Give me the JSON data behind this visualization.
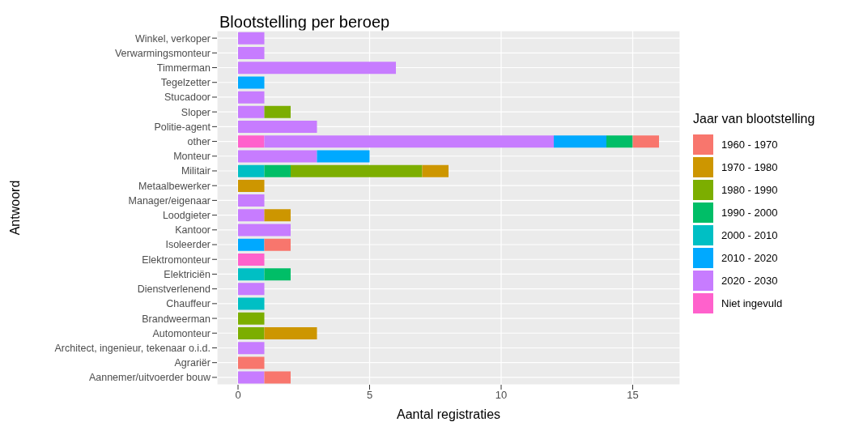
{
  "chart_data": {
    "type": "bar",
    "orientation": "horizontal",
    "stacked": true,
    "title": "Blootstelling per beroep",
    "xlabel": "Aantal registraties",
    "ylabel": "Antwoord",
    "legend_title": "Jaar van blootstelling",
    "legend": "right",
    "grid": true,
    "categories": [
      "Winkel, verkoper",
      "Verwarmingsmonteur",
      "Timmerman",
      "Tegelzetter",
      "Stucadoor",
      "Sloper",
      "Politie-agent",
      "other",
      "Monteur",
      "Militair",
      "Metaalbewerker",
      "Manager/eigenaar",
      "Loodgieter",
      "Kantoor",
      "Isoleerder",
      "Elektromonteur",
      "Elektriciën",
      "Dienstverlenend",
      "Chauffeur",
      "Brandweerman",
      "Automonteur",
      "Architect, ingenieur, tekenaar o.i.d.",
      "Agrariër",
      "Aannemer/uitvoerder bouw"
    ],
    "xlim": [
      -0.8,
      16.8
    ],
    "xticks": [
      0,
      5,
      10,
      15
    ],
    "series": [
      {
        "name": "Niet ingevuld",
        "color": "#ff61cc",
        "values": [
          null,
          null,
          null,
          null,
          null,
          null,
          null,
          1,
          null,
          null,
          null,
          null,
          null,
          null,
          null,
          1,
          null,
          null,
          null,
          null,
          null,
          null,
          null,
          null
        ]
      },
      {
        "name": "2020 - 2030",
        "color": "#c77cff",
        "values": [
          1,
          1,
          6,
          null,
          1,
          1,
          3,
          11,
          3,
          null,
          null,
          1,
          1,
          2,
          null,
          null,
          null,
          1,
          null,
          null,
          null,
          1,
          null,
          1
        ]
      },
      {
        "name": "2010 - 2020",
        "color": "#00a9ff",
        "values": [
          null,
          null,
          null,
          1,
          null,
          null,
          null,
          2,
          2,
          null,
          null,
          null,
          null,
          null,
          1,
          null,
          null,
          null,
          null,
          null,
          null,
          null,
          null,
          null
        ]
      },
      {
        "name": "2000 - 2010",
        "color": "#00bfc4",
        "values": [
          null,
          null,
          null,
          null,
          null,
          null,
          null,
          null,
          null,
          1,
          null,
          null,
          null,
          null,
          null,
          null,
          1,
          null,
          1,
          null,
          null,
          null,
          null,
          null
        ]
      },
      {
        "name": "1990 - 2000",
        "color": "#00be67",
        "values": [
          null,
          null,
          null,
          null,
          null,
          null,
          null,
          1,
          null,
          1,
          null,
          null,
          null,
          null,
          null,
          null,
          1,
          null,
          null,
          null,
          null,
          null,
          null,
          null
        ]
      },
      {
        "name": "1980 - 1990",
        "color": "#7cae00",
        "values": [
          null,
          null,
          null,
          null,
          null,
          1,
          null,
          null,
          null,
          5,
          null,
          null,
          null,
          null,
          null,
          null,
          null,
          null,
          null,
          1,
          1,
          null,
          null,
          null
        ]
      },
      {
        "name": "1970 - 1980",
        "color": "#cd9600",
        "values": [
          null,
          null,
          null,
          null,
          null,
          null,
          null,
          null,
          null,
          1,
          1,
          null,
          1,
          null,
          null,
          null,
          null,
          null,
          null,
          null,
          2,
          null,
          null,
          null
        ]
      },
      {
        "name": "1960 - 1970",
        "color": "#f8766d",
        "values": [
          null,
          null,
          null,
          null,
          null,
          null,
          null,
          1,
          null,
          null,
          null,
          null,
          null,
          null,
          1,
          null,
          null,
          null,
          null,
          null,
          null,
          null,
          1,
          1
        ]
      }
    ]
  }
}
